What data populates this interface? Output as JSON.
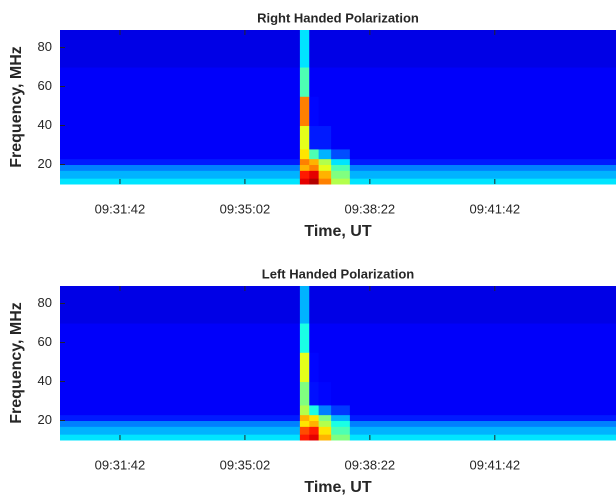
{
  "chart_data": [
    {
      "type": "heatmap",
      "title": "Right Handed Polarization",
      "x_label": "Time, UT",
      "y_label": "Frequency, MHz",
      "x_edges": [
        "09:30:06",
        "09:36:30",
        "09:36:45",
        "09:37:00",
        "09:37:20",
        "09:37:50",
        "09:44:56"
      ],
      "y_edges": [
        10,
        13,
        17,
        20,
        23,
        28,
        40,
        55,
        70,
        89
      ],
      "z": [
        [
          0.35,
          0.9,
          0.95,
          0.75,
          0.55,
          0.35
        ],
        [
          0.3,
          0.85,
          0.9,
          0.7,
          0.5,
          0.3
        ],
        [
          0.25,
          0.7,
          0.75,
          0.6,
          0.45,
          0.25
        ],
        [
          0.15,
          0.75,
          0.7,
          0.55,
          0.35,
          0.15
        ],
        [
          0.12,
          0.65,
          0.45,
          0.3,
          0.2,
          0.12
        ],
        [
          0.12,
          0.6,
          0.15,
          0.15,
          0.12,
          0.12
        ],
        [
          0.12,
          0.75,
          0.13,
          0.12,
          0.12,
          0.12
        ],
        [
          0.12,
          0.45,
          0.12,
          0.12,
          0.12,
          0.12
        ],
        [
          0.1,
          0.35,
          0.1,
          0.1,
          0.1,
          0.1
        ]
      ],
      "colormap": "jet",
      "zlim": [
        0,
        1
      ],
      "xlim": [
        "09:30:06",
        "09:44:56"
      ],
      "xticks": [
        "09:31:42",
        "09:35:02",
        "09:38:22",
        "09:41:42"
      ],
      "ylim": [
        10,
        89
      ],
      "yticks": [
        20,
        40,
        60,
        80
      ]
    },
    {
      "type": "heatmap",
      "title": "Left Handed Polarization",
      "x_label": "Time, UT",
      "y_label": "Frequency, MHz",
      "x_edges": [
        "09:30:06",
        "09:36:30",
        "09:36:45",
        "09:37:00",
        "09:37:20",
        "09:37:50",
        "09:44:56"
      ],
      "y_edges": [
        10,
        13,
        17,
        20,
        23,
        28,
        40,
        55,
        70,
        89
      ],
      "z": [
        [
          0.35,
          0.85,
          0.9,
          0.7,
          0.5,
          0.35
        ],
        [
          0.3,
          0.8,
          0.85,
          0.65,
          0.45,
          0.3
        ],
        [
          0.25,
          0.65,
          0.7,
          0.55,
          0.4,
          0.25
        ],
        [
          0.15,
          0.7,
          0.65,
          0.5,
          0.3,
          0.15
        ],
        [
          0.12,
          0.55,
          0.4,
          0.25,
          0.18,
          0.12
        ],
        [
          0.12,
          0.5,
          0.14,
          0.13,
          0.12,
          0.12
        ],
        [
          0.12,
          0.6,
          0.13,
          0.12,
          0.12,
          0.12
        ],
        [
          0.12,
          0.4,
          0.12,
          0.12,
          0.12,
          0.12
        ],
        [
          0.1,
          0.3,
          0.1,
          0.1,
          0.1,
          0.1
        ]
      ],
      "colormap": "jet",
      "zlim": [
        0,
        1
      ],
      "xlim": [
        "09:30:06",
        "09:44:56"
      ],
      "xticks": [
        "09:31:42",
        "09:35:02",
        "09:38:22",
        "09:41:42"
      ],
      "ylim": [
        10,
        89
      ],
      "yticks": [
        20,
        40,
        60,
        80
      ]
    }
  ]
}
